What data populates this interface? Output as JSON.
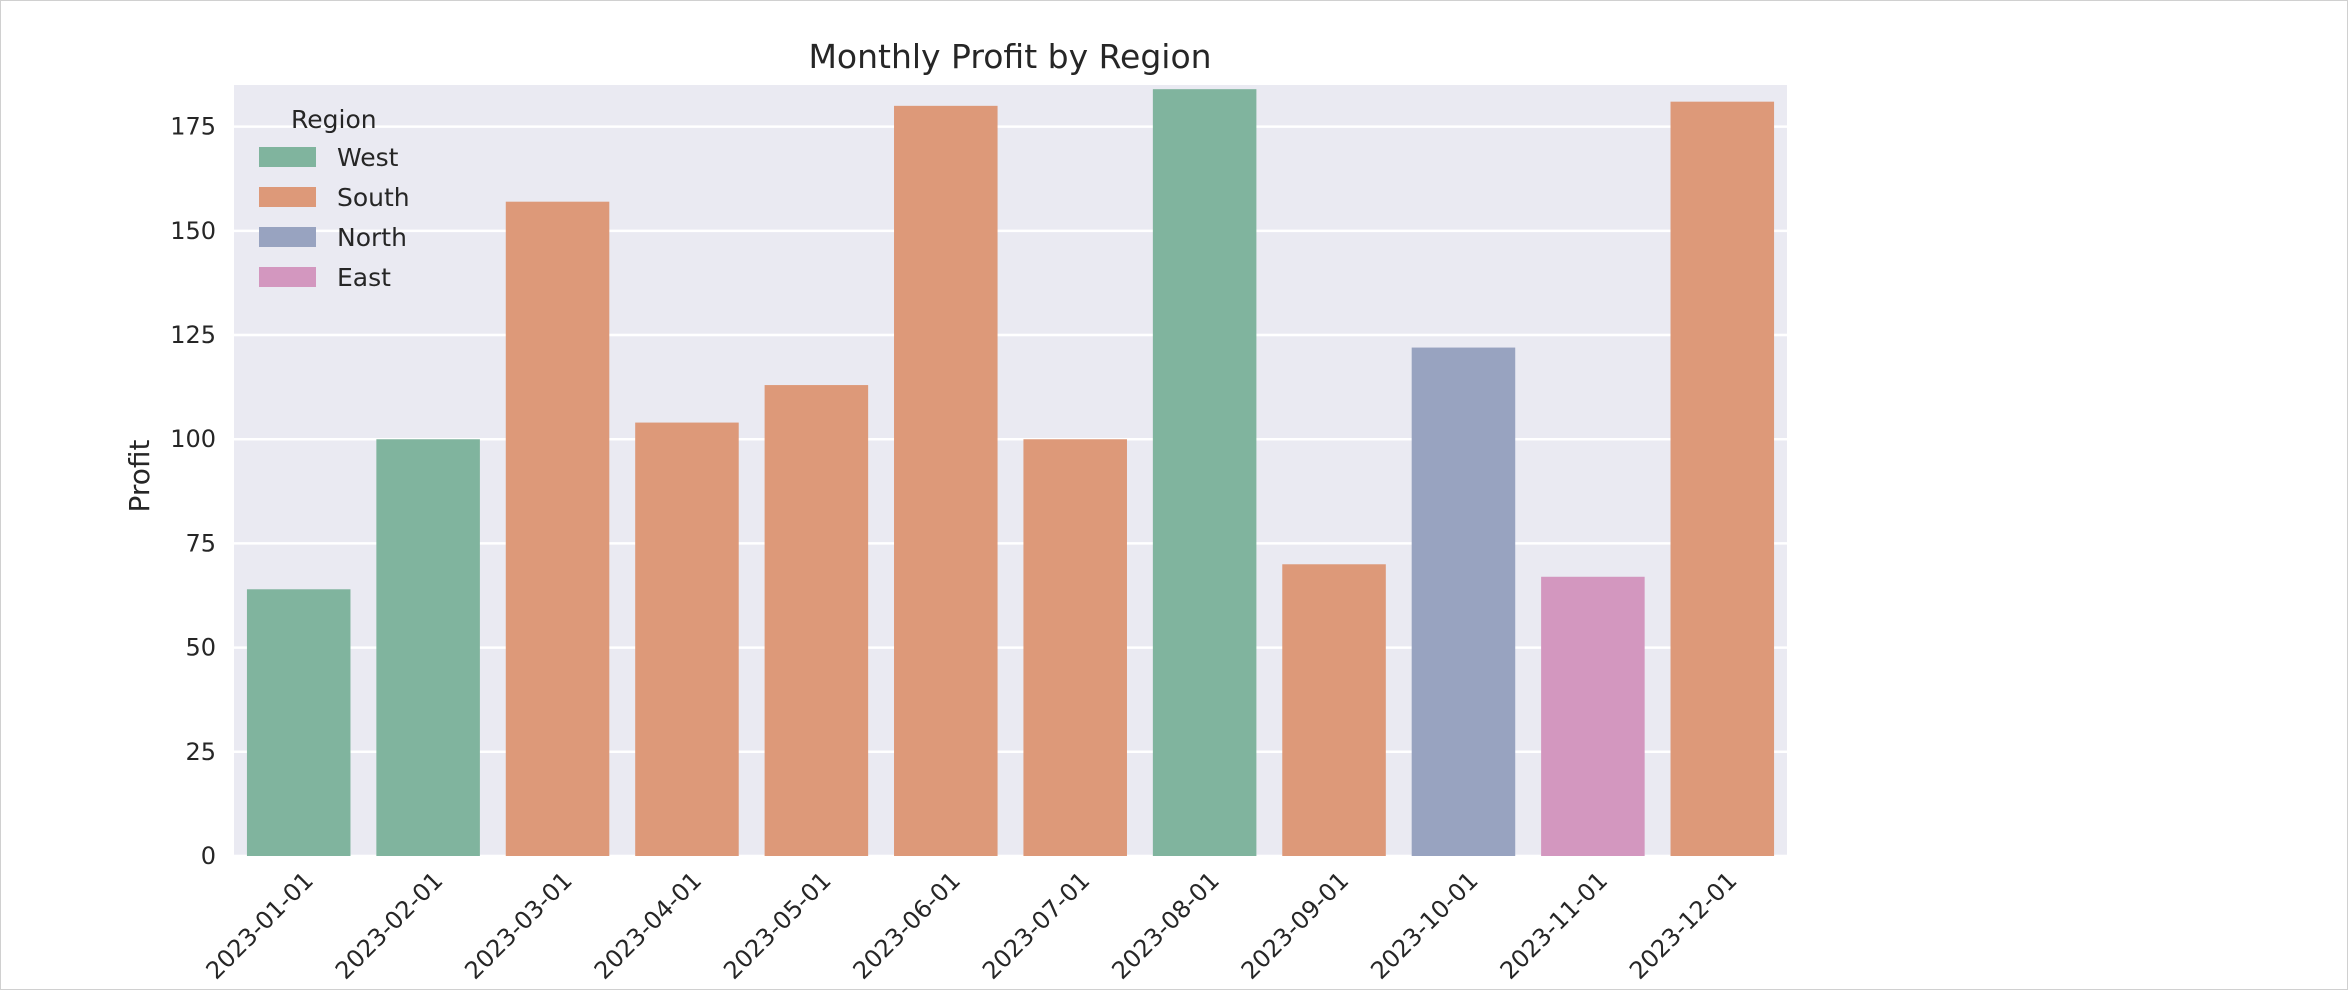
{
  "chart_data": {
    "type": "bar",
    "title": "Monthly Profit by Region",
    "xlabel": "",
    "ylabel": "Profit",
    "ylim": [
      0,
      185
    ],
    "yticks": [
      0,
      25,
      50,
      75,
      100,
      125,
      150,
      175
    ],
    "grid": true,
    "legend": {
      "title": "Region",
      "placement": "top-left",
      "entries": [
        {
          "name": "West",
          "color": "#80b49e"
        },
        {
          "name": "South",
          "color": "#dd9979"
        },
        {
          "name": "North",
          "color": "#98a3c0"
        },
        {
          "name": "East",
          "color": "#d397bf"
        }
      ]
    },
    "categories": [
      "2023-01-01",
      "2023-02-01",
      "2023-03-01",
      "2023-04-01",
      "2023-05-01",
      "2023-06-01",
      "2023-07-01",
      "2023-08-01",
      "2023-09-01",
      "2023-10-01",
      "2023-11-01",
      "2023-12-01"
    ],
    "values": [
      64,
      100,
      157,
      104,
      113,
      180,
      100,
      184,
      70,
      122,
      67,
      181
    ],
    "regions": [
      "West",
      "West",
      "South",
      "South",
      "South",
      "South",
      "South",
      "West",
      "South",
      "North",
      "East",
      "South"
    ]
  }
}
